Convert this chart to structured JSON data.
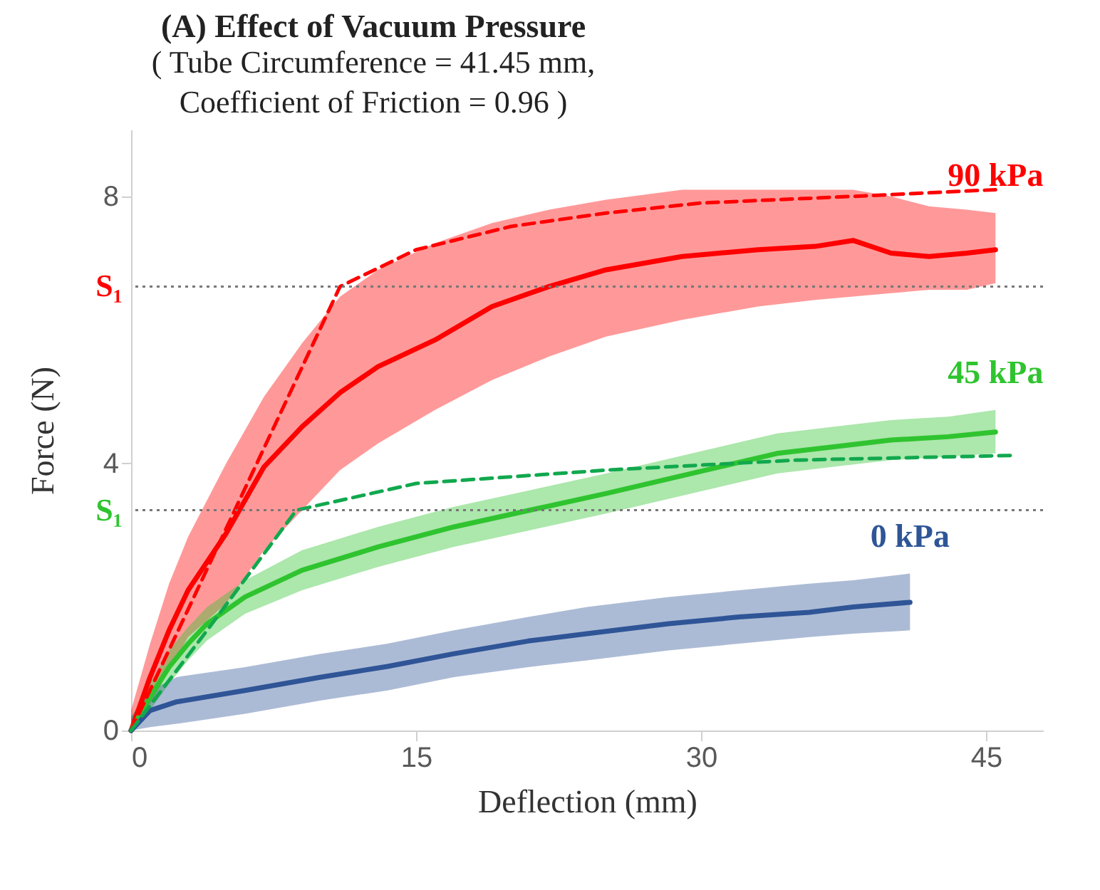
{
  "chart_data": {
    "type": "line",
    "title": "(A) Effect of Vacuum Pressure",
    "subtitle": [
      "( Tube Circumference = 41.45 mm,",
      "Coefficient of Friction = 0.96 )"
    ],
    "xlabel": "Deflection (mm)",
    "ylabel": "Force (N)",
    "xlim": [
      0,
      48
    ],
    "ylim": [
      0,
      9
    ],
    "xticks": [
      0,
      15,
      30,
      45
    ],
    "yticks": [
      0,
      4,
      8
    ],
    "grid": false,
    "series": [
      {
        "name": "90 kPa",
        "color": "#ff0000",
        "line_style": "solid",
        "x": [
          0,
          1,
          2,
          3,
          5,
          7,
          9,
          11,
          13,
          16,
          19,
          22,
          25,
          29,
          33,
          36,
          38,
          40,
          42,
          44,
          45.5
        ],
        "values": [
          0,
          0.8,
          1.5,
          2.1,
          2.95,
          3.95,
          4.55,
          5.06,
          5.45,
          5.85,
          6.35,
          6.65,
          6.9,
          7.1,
          7.2,
          7.25,
          7.34,
          7.15,
          7.1,
          7.15,
          7.2
        ],
        "lower": [
          0,
          0.4,
          0.9,
          1.4,
          1.9,
          2.7,
          3.3,
          3.9,
          4.3,
          4.8,
          5.25,
          5.6,
          5.9,
          6.15,
          6.35,
          6.45,
          6.5,
          6.55,
          6.6,
          6.6,
          6.7
        ],
        "upper": [
          0.3,
          1.3,
          2.2,
          2.9,
          4.0,
          5.0,
          5.8,
          6.5,
          6.9,
          7.3,
          7.6,
          7.8,
          7.95,
          8.1,
          8.1,
          8.1,
          8.1,
          8.0,
          7.85,
          7.8,
          7.75
        ]
      },
      {
        "name": "45 kPa",
        "color": "#2fc42f",
        "line_style": "solid",
        "x": [
          0,
          1,
          2,
          3,
          4,
          6,
          9,
          13,
          17,
          21,
          25,
          28,
          31,
          34,
          37,
          40,
          43,
          45.5
        ],
        "values": [
          0,
          0.5,
          0.95,
          1.3,
          1.6,
          2.0,
          2.4,
          2.75,
          3.05,
          3.3,
          3.55,
          3.75,
          3.95,
          4.15,
          4.25,
          4.35,
          4.4,
          4.47
        ],
        "lower": [
          0,
          0.3,
          0.7,
          1.05,
          1.35,
          1.75,
          2.1,
          2.45,
          2.75,
          3.0,
          3.25,
          3.45,
          3.65,
          3.85,
          3.95,
          4.05,
          4.1,
          4.15
        ],
        "upper": [
          0.2,
          0.7,
          1.2,
          1.55,
          1.85,
          2.25,
          2.7,
          3.05,
          3.35,
          3.6,
          3.85,
          4.05,
          4.25,
          4.45,
          4.55,
          4.65,
          4.7,
          4.8
        ]
      },
      {
        "name": "0 kPa",
        "color": "#2f5597",
        "line_style": "solid",
        "x": [
          0,
          1,
          2.4,
          6,
          10,
          13.5,
          17,
          20.9,
          24,
          28.3,
          32,
          35.7,
          38,
          41
        ],
        "values": [
          0,
          0.3,
          0.43,
          0.6,
          0.8,
          0.96,
          1.15,
          1.34,
          1.45,
          1.6,
          1.7,
          1.77,
          1.85,
          1.92
        ],
        "lower": [
          0,
          0.05,
          0.1,
          0.25,
          0.45,
          0.6,
          0.8,
          0.95,
          1.05,
          1.2,
          1.3,
          1.4,
          1.45,
          1.5
        ],
        "upper": [
          0.2,
          0.6,
          0.8,
          0.95,
          1.15,
          1.3,
          1.5,
          1.7,
          1.85,
          2.0,
          2.1,
          2.2,
          2.25,
          2.35
        ]
      },
      {
        "color": "#ff0000",
        "line_style": "dashed",
        "x": [
          0,
          11,
          15,
          20,
          25,
          30,
          38,
          45.5
        ],
        "values": [
          0,
          6.65,
          7.2,
          7.55,
          7.75,
          7.9,
          8.0,
          8.1
        ]
      },
      {
        "color": "#11a84e",
        "line_style": "dashed",
        "x": [
          0,
          4,
          8.7,
          15,
          25,
          35,
          46.5
        ],
        "values": [
          0,
          1.5,
          3.3,
          3.7,
          3.9,
          4.05,
          4.12
        ]
      }
    ],
    "ref_lines": [
      {
        "axis": "y",
        "value": 6.65,
        "label": "S₁",
        "color": "#777777",
        "line_style": "dotted"
      },
      {
        "axis": "y",
        "value": 3.3,
        "label": "S₁",
        "color": "#777777",
        "line_style": "dotted"
      }
    ]
  }
}
